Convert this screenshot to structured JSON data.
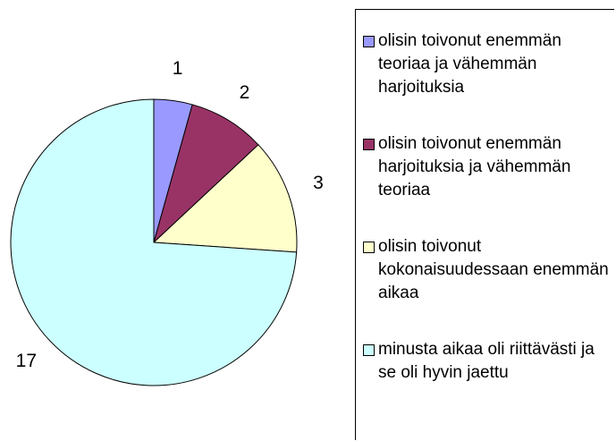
{
  "chart_data": {
    "type": "pie",
    "categories": [
      "olisin toivonut enemmän teoriaa ja vähemmän harjoituksia",
      "olisin toivonut enemmän harjoituksia ja vähemmän teoriaa",
      "olisin toivonut kokonaisuudessaan enemmän aikaa",
      "minusta aikaa oli riittävästi ja se oli hyvin jaettu"
    ],
    "values": [
      1,
      2,
      3,
      17
    ],
    "colors": [
      "#9999ff",
      "#993366",
      "#ffffcc",
      "#ccffff"
    ],
    "legend": "right"
  }
}
